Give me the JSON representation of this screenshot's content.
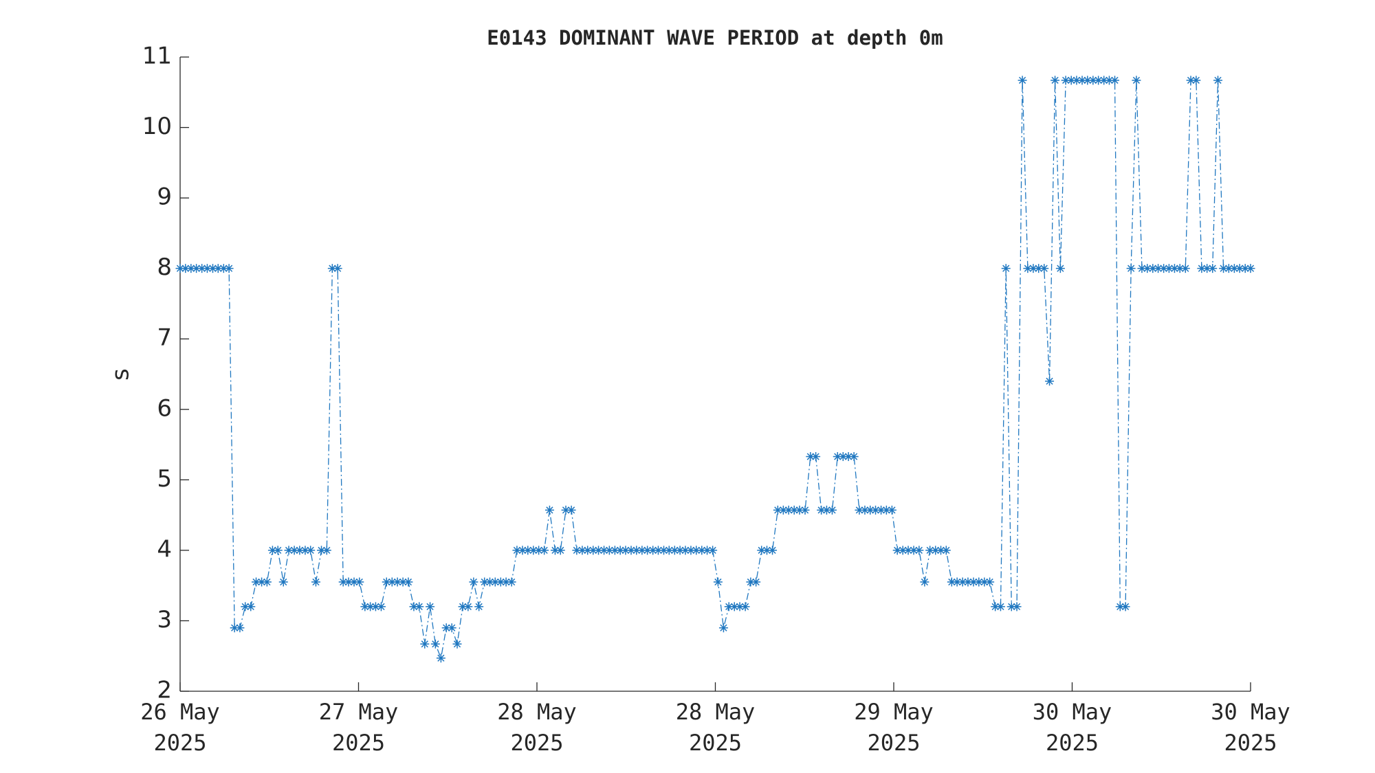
{
  "chart_data": {
    "type": "line",
    "title": "E0143 DOMINANT WAVE PERIOD at depth 0m",
    "ylabel": "s",
    "xlim": [
      0,
      6
    ],
    "xticks": [
      {
        "value": 0,
        "label": [
          "26 May",
          "2025"
        ]
      },
      {
        "value": 1,
        "label": [
          "27 May",
          "2025"
        ]
      },
      {
        "value": 2,
        "label": [
          "28 May",
          "2025"
        ]
      },
      {
        "value": 3,
        "label": [
          "28 May",
          "2025"
        ]
      },
      {
        "value": 4,
        "label": [
          "29 May",
          "2025"
        ]
      },
      {
        "value": 5,
        "label": [
          "30 May",
          "2025"
        ]
      },
      {
        "value": 6,
        "label": [
          "30 May",
          "2025"
        ]
      }
    ],
    "ylim": [
      2,
      11
    ],
    "yticks": [
      2,
      3,
      4,
      5,
      6,
      7,
      8,
      9,
      10,
      11
    ],
    "grid": false,
    "x": [
      0,
      0.03,
      0.061,
      0.091,
      0.122,
      0.152,
      0.183,
      0.213,
      0.244,
      0.274,
      0.305,
      0.335,
      0.365,
      0.396,
      0.426,
      0.457,
      0.487,
      0.518,
      0.548,
      0.579,
      0.609,
      0.64,
      0.67,
      0.701,
      0.731,
      0.761,
      0.792,
      0.822,
      0.853,
      0.883,
      0.914,
      0.944,
      0.975,
      1.005,
      1.036,
      1.066,
      1.096,
      1.127,
      1.157,
      1.188,
      1.218,
      1.249,
      1.279,
      1.31,
      1.34,
      1.371,
      1.401,
      1.431,
      1.462,
      1.492,
      1.523,
      1.553,
      1.584,
      1.614,
      1.645,
      1.675,
      1.706,
      1.736,
      1.766,
      1.797,
      1.827,
      1.858,
      1.888,
      1.919,
      1.949,
      1.98,
      2.01,
      2.041,
      2.071,
      2.102,
      2.132,
      2.162,
      2.193,
      2.223,
      2.254,
      2.284,
      2.315,
      2.345,
      2.376,
      2.406,
      2.437,
      2.467,
      2.497,
      2.528,
      2.558,
      2.589,
      2.619,
      2.65,
      2.68,
      2.711,
      2.741,
      2.772,
      2.802,
      2.832,
      2.863,
      2.893,
      2.924,
      2.954,
      2.985,
      3.015,
      3.046,
      3.076,
      3.107,
      3.137,
      3.168,
      3.198,
      3.228,
      3.259,
      3.289,
      3.32,
      3.35,
      3.381,
      3.411,
      3.442,
      3.472,
      3.503,
      3.533,
      3.563,
      3.594,
      3.624,
      3.655,
      3.685,
      3.716,
      3.746,
      3.777,
      3.807,
      3.838,
      3.868,
      3.898,
      3.929,
      3.959,
      3.99,
      4.02,
      4.051,
      4.081,
      4.112,
      4.142,
      4.173,
      4.203,
      4.234,
      4.264,
      4.294,
      4.325,
      4.355,
      4.386,
      4.416,
      4.447,
      4.477,
      4.508,
      4.538,
      4.569,
      4.599,
      4.629,
      4.66,
      4.69,
      4.721,
      4.751,
      4.782,
      4.812,
      4.843,
      4.873,
      4.904,
      4.934,
      4.964,
      4.995,
      5.025,
      5.056,
      5.086,
      5.117,
      5.147,
      5.178,
      5.208,
      5.239,
      5.269,
      5.299,
      5.33,
      5.36,
      5.391,
      5.421,
      5.452,
      5.482,
      5.513,
      5.543,
      5.574,
      5.604,
      5.635,
      5.665,
      5.695,
      5.726,
      5.756,
      5.787,
      5.817,
      5.848,
      5.878,
      5.909,
      5.939,
      5.97,
      6.0
    ],
    "series": [
      {
        "color": "#1f77c0",
        "values": [
          8,
          8,
          8,
          8,
          8,
          8,
          8,
          8,
          8,
          8,
          2.9,
          2.9,
          3.2,
          3.2,
          3.55,
          3.55,
          3.55,
          4,
          4,
          3.55,
          4,
          4,
          4,
          4,
          4,
          3.55,
          4,
          4,
          8,
          8,
          3.55,
          3.55,
          3.55,
          3.55,
          3.2,
          3.2,
          3.2,
          3.2,
          3.55,
          3.55,
          3.55,
          3.55,
          3.55,
          3.2,
          3.2,
          2.67,
          3.2,
          2.67,
          2.47,
          2.9,
          2.9,
          2.67,
          3.2,
          3.2,
          3.55,
          3.2,
          3.55,
          3.55,
          3.55,
          3.55,
          3.55,
          3.55,
          4,
          4,
          4,
          4,
          4,
          4,
          4.57,
          4,
          4,
          4.57,
          4.57,
          4,
          4,
          4,
          4,
          4,
          4,
          4,
          4,
          4,
          4,
          4,
          4,
          4,
          4,
          4,
          4,
          4,
          4,
          4,
          4,
          4,
          4,
          4,
          4,
          4,
          4,
          3.55,
          2.9,
          3.2,
          3.2,
          3.2,
          3.2,
          3.55,
          3.55,
          4,
          4,
          4,
          4.57,
          4.57,
          4.57,
          4.57,
          4.57,
          4.57,
          5.33,
          5.33,
          4.57,
          4.57,
          4.57,
          5.33,
          5.33,
          5.33,
          5.33,
          4.57,
          4.57,
          4.57,
          4.57,
          4.57,
          4.57,
          4.57,
          4,
          4,
          4,
          4,
          4,
          3.55,
          4,
          4,
          4,
          4,
          3.55,
          3.55,
          3.55,
          3.55,
          3.55,
          3.55,
          3.55,
          3.55,
          3.2,
          3.2,
          8,
          3.2,
          3.2,
          10.67,
          8,
          8,
          8,
          8,
          6.4,
          10.67,
          8,
          10.67,
          10.67,
          10.67,
          10.67,
          10.67,
          10.67,
          10.67,
          10.67,
          10.67,
          10.67,
          3.2,
          3.2,
          8,
          10.67,
          8,
          8,
          8,
          8,
          8,
          8,
          8,
          8,
          8,
          10.67,
          10.67,
          8,
          8,
          8,
          10.67,
          8,
          8,
          8,
          8,
          8,
          8
        ]
      }
    ]
  }
}
